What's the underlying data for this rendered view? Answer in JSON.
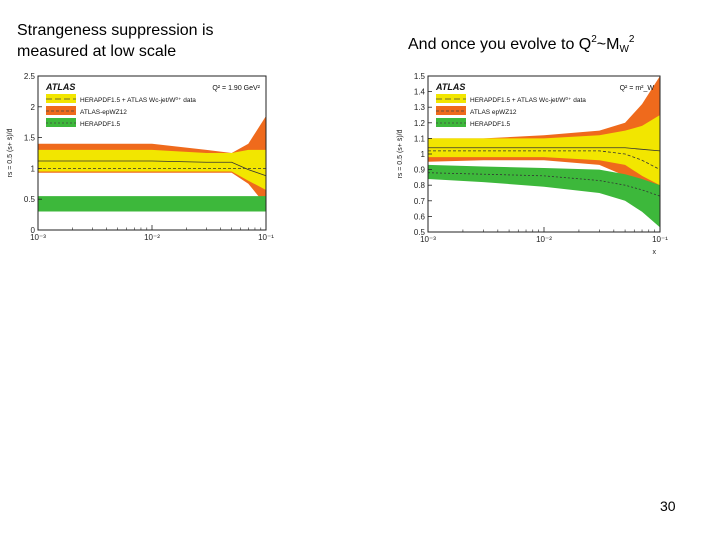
{
  "slide": {
    "left_heading": "Strangeness suppression is measured at low scale",
    "right_heading": {
      "text": "And once you evolve to Q",
      "sup1": "2",
      "tilde": "~M",
      "sub": "W",
      "sup2": "2"
    },
    "page_number": "30"
  },
  "chart_data": [
    {
      "type": "area",
      "experiment": "ATLAS",
      "scale_label": "Q² = 1.90 GeV²",
      "ylabel": "rs = 0.5 (s+ s̄)/d̄",
      "xlabel": "",
      "xscale": "log",
      "xlim": [
        0.001,
        0.1
      ],
      "ylim": [
        0,
        2.5
      ],
      "x_ticks": [
        "10⁻³",
        "10⁻²",
        "10⁻¹"
      ],
      "y_ticks": [
        "0",
        "0.5",
        "1",
        "1.5",
        "2",
        "2.5"
      ],
      "legend": [
        "HERAPDF1.5 + ATLAS Wc-jet/W⁰⁺ data",
        "ATLAS-epWZ12",
        "HERAPDF1.5"
      ],
      "legend_position": "top-left",
      "colors": {
        "herapdf_atlas_wc": "#f2e600",
        "atlas_epwz12": "#ef6a1c",
        "herapdf15": "#3db83b"
      },
      "series": [
        {
          "name": "ATLAS-epWZ12",
          "x": [
            0.001,
            0.003,
            0.01,
            0.03,
            0.05,
            0.07,
            0.1
          ],
          "low": [
            0.93,
            0.93,
            0.93,
            0.93,
            0.93,
            0.75,
            0.4
          ],
          "high": [
            1.4,
            1.4,
            1.4,
            1.3,
            1.25,
            1.4,
            1.85
          ]
        },
        {
          "name": "HERAPDF1.5 + ATLAS Wc-jet/W⁰⁺ data",
          "x": [
            0.001,
            0.003,
            0.01,
            0.03,
            0.05,
            0.07,
            0.1
          ],
          "low": [
            0.95,
            0.95,
            0.95,
            0.95,
            0.95,
            0.8,
            0.65
          ],
          "high": [
            1.3,
            1.3,
            1.3,
            1.25,
            1.25,
            1.3,
            1.3
          ]
        },
        {
          "name": "HERAPDF1.5",
          "x": [
            0.001,
            0.1
          ],
          "low": [
            0.3,
            0.3
          ],
          "high": [
            0.55,
            0.55
          ]
        }
      ],
      "central_lines": [
        {
          "name": "HERAPDF1.5 + ATLAS Wc-jet/W⁰⁺ data",
          "x": [
            0.001,
            0.01,
            0.03,
            0.05,
            0.07,
            0.1
          ],
          "y": [
            1.12,
            1.12,
            1.1,
            1.1,
            0.98,
            0.88
          ]
        },
        {
          "name": "ATLAS-epWZ12",
          "x": [
            0.001,
            0.1
          ],
          "y": [
            1.0,
            1.0
          ]
        }
      ]
    },
    {
      "type": "area",
      "experiment": "ATLAS",
      "scale_label": "Q² = m²_W",
      "ylabel": "rs = 0.5 (s+ s̄)/d̄",
      "xlabel": "x",
      "xscale": "log",
      "xlim": [
        0.001,
        0.1
      ],
      "ylim": [
        0.5,
        1.5
      ],
      "x_ticks": [
        "10⁻³",
        "10⁻²",
        "10⁻¹"
      ],
      "y_ticks": [
        "0.5",
        "0.6",
        "0.7",
        "0.8",
        "0.9",
        "1",
        "1.1",
        "1.2",
        "1.3",
        "1.4",
        "1.5"
      ],
      "legend": [
        "HERAPDF1.5 + ATLAS Wc-jet/W⁰⁺ data",
        "ATLAS epWZ12",
        "HERAPDF1.5"
      ],
      "legend_position": "top-left",
      "colors": {
        "herapdf_atlas_wc": "#f2e600",
        "atlas_epwz12": "#ef6a1c",
        "herapdf15": "#3db83b"
      },
      "series": [
        {
          "name": "ATLAS epWZ12",
          "x": [
            0.001,
            0.003,
            0.01,
            0.03,
            0.05,
            0.07,
            0.1
          ],
          "low": [
            0.95,
            0.96,
            0.96,
            0.93,
            0.86,
            0.72,
            0.55
          ],
          "high": [
            1.1,
            1.1,
            1.12,
            1.15,
            1.2,
            1.32,
            1.5
          ]
        },
        {
          "name": "HERAPDF1.5 + ATLAS Wc-jet/W⁰⁺ data",
          "x": [
            0.001,
            0.003,
            0.01,
            0.03,
            0.05,
            0.07,
            0.1
          ],
          "low": [
            0.98,
            0.98,
            0.98,
            0.96,
            0.93,
            0.86,
            0.8
          ],
          "high": [
            1.1,
            1.1,
            1.1,
            1.12,
            1.15,
            1.18,
            1.25
          ]
        },
        {
          "name": "HERAPDF1.5",
          "x": [
            0.001,
            0.003,
            0.01,
            0.03,
            0.05,
            0.07,
            0.1
          ],
          "low": [
            0.84,
            0.82,
            0.79,
            0.75,
            0.7,
            0.63,
            0.53
          ],
          "high": [
            0.93,
            0.92,
            0.91,
            0.9,
            0.87,
            0.84,
            0.8
          ]
        }
      ],
      "central_lines": [
        {
          "name": "HERAPDF1.5 + ATLAS Wc-jet/W⁰⁺ data",
          "x": [
            0.001,
            0.01,
            0.03,
            0.05,
            0.07,
            0.1
          ],
          "y": [
            1.04,
            1.04,
            1.04,
            1.04,
            1.03,
            1.02
          ]
        },
        {
          "name": "ATLAS epWZ12",
          "x": [
            0.001,
            0.01,
            0.03,
            0.05,
            0.07,
            0.1
          ],
          "y": [
            1.02,
            1.02,
            1.02,
            1.0,
            0.96,
            0.9
          ]
        },
        {
          "name": "HERAPDF1.5",
          "x": [
            0.001,
            0.01,
            0.03,
            0.05,
            0.07,
            0.1
          ],
          "y": [
            0.88,
            0.86,
            0.83,
            0.8,
            0.77,
            0.73
          ]
        }
      ]
    }
  ]
}
